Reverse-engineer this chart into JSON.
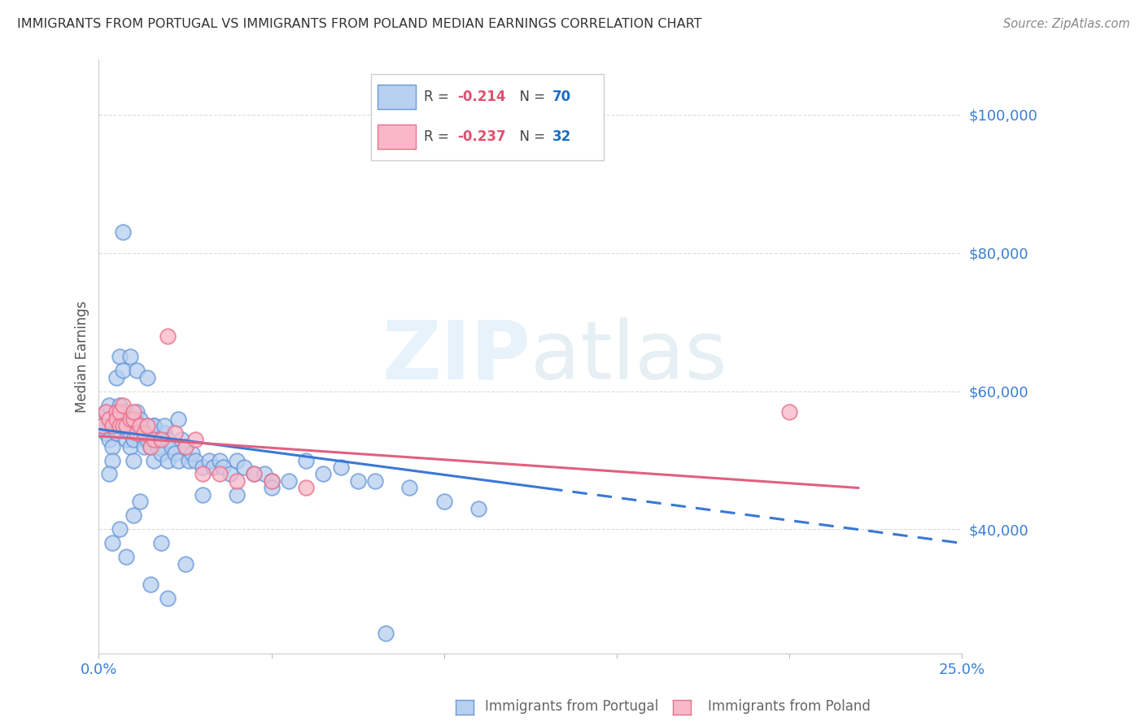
{
  "title": "IMMIGRANTS FROM PORTUGAL VS IMMIGRANTS FROM POLAND MEDIAN EARNINGS CORRELATION CHART",
  "source": "Source: ZipAtlas.com",
  "ylabel": "Median Earnings",
  "ytick_labels": [
    "$40,000",
    "$60,000",
    "$80,000",
    "$100,000"
  ],
  "ytick_values": [
    40000,
    60000,
    80000,
    100000
  ],
  "ylim": [
    22000,
    108000
  ],
  "xlim": [
    0.0,
    0.25
  ],
  "portugal_color_face": "#b8d0f0",
  "portugal_color_edge": "#6898d8",
  "poland_color_face": "#f8b8c8",
  "poland_color_edge": "#e8708a",
  "portugal_label": "Immigrants from Portugal",
  "poland_label": "Immigrants from Poland",
  "watermark_zip": "ZIP",
  "watermark_atlas": "atlas",
  "axis_color": "#3a7fd4",
  "grid_color": "#d8d8d8",
  "background_color": "#ffffff",
  "title_color": "#333333",
  "portugal_scatter_x": [
    0.001,
    0.002,
    0.002,
    0.003,
    0.003,
    0.003,
    0.004,
    0.004,
    0.004,
    0.005,
    0.005,
    0.005,
    0.006,
    0.006,
    0.006,
    0.007,
    0.007,
    0.008,
    0.008,
    0.008,
    0.009,
    0.009,
    0.01,
    0.01,
    0.01,
    0.011,
    0.011,
    0.012,
    0.012,
    0.013,
    0.013,
    0.014,
    0.014,
    0.015,
    0.015,
    0.016,
    0.016,
    0.017,
    0.018,
    0.019,
    0.02,
    0.02,
    0.021,
    0.022,
    0.023,
    0.024,
    0.025,
    0.026,
    0.027,
    0.028,
    0.03,
    0.032,
    0.033,
    0.035,
    0.036,
    0.038,
    0.04,
    0.042,
    0.045,
    0.048,
    0.05,
    0.055,
    0.06,
    0.065,
    0.07,
    0.075,
    0.08,
    0.09,
    0.1,
    0.11
  ],
  "portugal_scatter_y": [
    56000,
    54000,
    57000,
    55000,
    53000,
    58000,
    55000,
    52000,
    50000,
    56000,
    54000,
    62000,
    55000,
    58000,
    65000,
    56000,
    63000,
    55000,
    57000,
    53000,
    54000,
    52000,
    56000,
    53000,
    50000,
    57000,
    55000,
    54000,
    56000,
    53000,
    52000,
    55000,
    53000,
    54000,
    52000,
    55000,
    50000,
    52000,
    51000,
    54000,
    53000,
    50000,
    52000,
    51000,
    50000,
    53000,
    52000,
    50000,
    51000,
    50000,
    49000,
    50000,
    49000,
    50000,
    49000,
    48000,
    50000,
    49000,
    48000,
    48000,
    47000,
    47000,
    50000,
    48000,
    49000,
    47000,
    47000,
    46000,
    44000,
    43000
  ],
  "portugal_extra_x": [
    0.001,
    0.003,
    0.004,
    0.006,
    0.008,
    0.01,
    0.012,
    0.015,
    0.018,
    0.02,
    0.025,
    0.03,
    0.04,
    0.05,
    0.007,
    0.009,
    0.011,
    0.014,
    0.016,
    0.019,
    0.023,
    0.083
  ],
  "portugal_extra_y": [
    55000,
    48000,
    38000,
    40000,
    36000,
    42000,
    44000,
    32000,
    38000,
    30000,
    35000,
    45000,
    45000,
    46000,
    83000,
    65000,
    63000,
    62000,
    55000,
    55000,
    56000,
    25000
  ],
  "poland_scatter_x": [
    0.001,
    0.002,
    0.003,
    0.004,
    0.005,
    0.005,
    0.006,
    0.006,
    0.007,
    0.007,
    0.008,
    0.009,
    0.01,
    0.01,
    0.011,
    0.012,
    0.013,
    0.014,
    0.015,
    0.016,
    0.018,
    0.02,
    0.022,
    0.025,
    0.028,
    0.03,
    0.035,
    0.04,
    0.045,
    0.05,
    0.06,
    0.2
  ],
  "poland_scatter_y": [
    55000,
    57000,
    56000,
    55000,
    57000,
    56000,
    55000,
    57000,
    58000,
    55000,
    55000,
    56000,
    56000,
    57000,
    54000,
    55000,
    54000,
    55000,
    52000,
    53000,
    53000,
    68000,
    54000,
    52000,
    53000,
    48000,
    48000,
    47000,
    48000,
    47000,
    46000,
    57000
  ],
  "portugal_trend_x": [
    0.0,
    0.25
  ],
  "portugal_trend_y": [
    54500,
    38000
  ],
  "portugal_trend_dash_start": 0.13,
  "poland_trend_x": [
    0.0,
    0.22
  ],
  "poland_trend_y": [
    53500,
    46000
  ],
  "legend_R1": "R = -0.214",
  "legend_N1": "N = 70",
  "legend_R2": "R = -0.237",
  "legend_N2": "N = 32",
  "legend_R_color": "#e05070",
  "legend_N_color": "#1a6fc4",
  "legend_text_color": "#444444"
}
